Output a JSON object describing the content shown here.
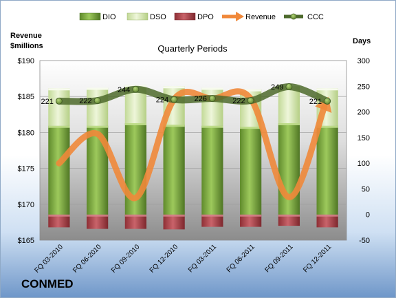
{
  "company_label": "CONMED",
  "colors": {
    "dio": "#7aa63a",
    "dso": "#d8e9b3",
    "dpo": "#b2454b",
    "revenue": "#f0883a",
    "ccc": "#4d6a2c"
  },
  "chart_data": {
    "type": "bar",
    "title": "Quarterly Periods",
    "left_axis_title": [
      "Revenue",
      "$millions"
    ],
    "right_axis_title": "Days",
    "categories": [
      "FQ 03-2010",
      "FQ 06-2010",
      "FQ 09-2010",
      "FQ 12-2010",
      "FQ 03-2011",
      "FQ 06-2011",
      "FQ 09-2011",
      "FQ 12-2011"
    ],
    "left_axis": {
      "min": 165,
      "max": 190,
      "step": 5,
      "tick_labels": [
        "$165",
        "$170",
        "$175",
        "$180",
        "$185",
        "$190"
      ]
    },
    "right_axis": {
      "min": -50,
      "max": 300,
      "step": 50,
      "tick_labels": [
        "-50",
        "0",
        "50",
        "100",
        "150",
        "200",
        "250",
        "300"
      ]
    },
    "legend": [
      "DIO",
      "DSO",
      "DPO",
      "Revenue",
      "CCC"
    ],
    "legend_position": "top",
    "series": [
      {
        "name": "DIO",
        "axis": "right",
        "kind": "bar-stacked",
        "values": [
          173,
          173,
          178,
          175,
          173,
          171,
          178,
          173
        ]
      },
      {
        "name": "DSO",
        "axis": "right",
        "kind": "bar-stacked",
        "values": [
          73,
          74,
          74,
          75,
          74,
          73,
          76,
          73
        ]
      },
      {
        "name": "DPO",
        "axis": "right",
        "kind": "bar-negative",
        "values": [
          -25,
          -28,
          -28,
          -29,
          -24,
          -24,
          -22,
          -25
        ]
      },
      {
        "name": "Revenue",
        "axis": "left",
        "kind": "line",
        "values": [
          175.7,
          179.8,
          170.9,
          184.6,
          184.7,
          184.7,
          171.0,
          184.6
        ]
      },
      {
        "name": "CCC",
        "axis": "right",
        "kind": "line",
        "values": [
          221,
          222,
          244,
          224,
          226,
          222,
          249,
          221
        ],
        "data_labels": [
          "221",
          "222",
          "244",
          "224",
          "226",
          "222",
          "249",
          "221"
        ]
      }
    ]
  }
}
